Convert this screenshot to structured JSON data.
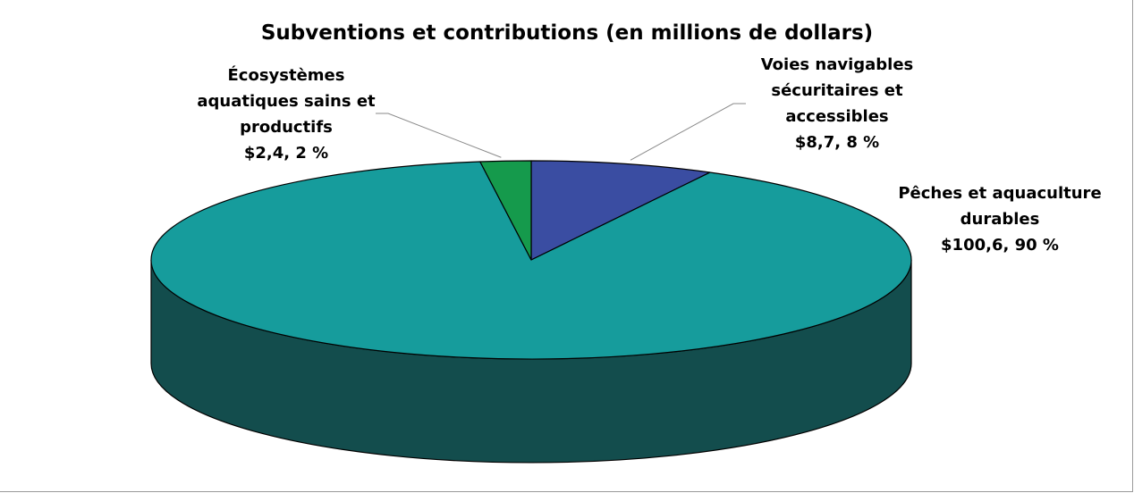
{
  "chart_data": {
    "type": "pie",
    "title": "Subventions et contributions (en millions de dollars)",
    "slices": [
      {
        "label_lines": [
          "Voies navigables",
          "sécuritaires et",
          "accessibles"
        ],
        "value_text": "$8,7, 8 %",
        "value": 8.7,
        "percent": 8,
        "color": "#3a4da2"
      },
      {
        "label_lines": [
          "Pêches et aquaculture",
          "durables"
        ],
        "value_text": "$100,6, 90 %",
        "value": 100.6,
        "percent": 90,
        "color": "#169c9c"
      },
      {
        "label_lines": [
          "Écosystèmes",
          "aquatiques sains et",
          "productifs"
        ],
        "value_text": "$2,4, 2 %",
        "value": 2.4,
        "percent": 2,
        "color": "#159a4c"
      }
    ],
    "side_color": "#134d4d",
    "legend": "none"
  }
}
